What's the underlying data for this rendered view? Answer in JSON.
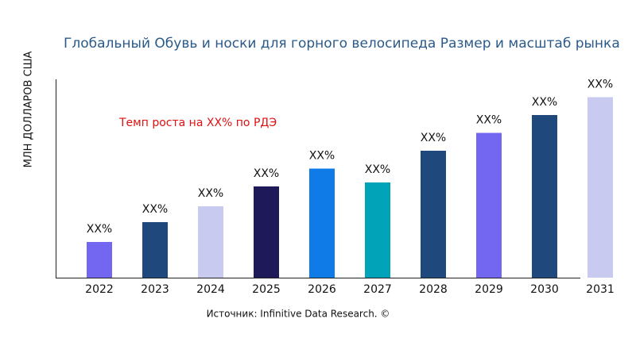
{
  "chart_data": {
    "type": "bar",
    "title": "Глобальный Обувь и носки для горного велосипеда Размер и масштаб рынка",
    "y_label": "МЛН ДОЛЛАРОВ США",
    "annotation": "Темп роста на XX% по РДЭ",
    "source": "Источник: Infinitive Data Research. ©",
    "categories": [
      "2022",
      "2023",
      "2024",
      "2025",
      "2026",
      "2027",
      "2028",
      "2029",
      "2030",
      "2031"
    ],
    "values": [
      18,
      28,
      36,
      46,
      55,
      48,
      64,
      73,
      82,
      91
    ],
    "value_labels": [
      "XX%",
      "XX%",
      "XX%",
      "XX%",
      "XX%",
      "XX%",
      "XX%",
      "XX%",
      "XX%",
      "XX%"
    ],
    "colors": [
      "#7366f0",
      "#1f497d",
      "#c9caf0",
      "#1e1a5a",
      "#0f7be6",
      "#00a3b8",
      "#1f497d",
      "#7366f0",
      "#1f497d",
      "#c9caf0"
    ],
    "ylim": [
      0,
      100
    ]
  }
}
